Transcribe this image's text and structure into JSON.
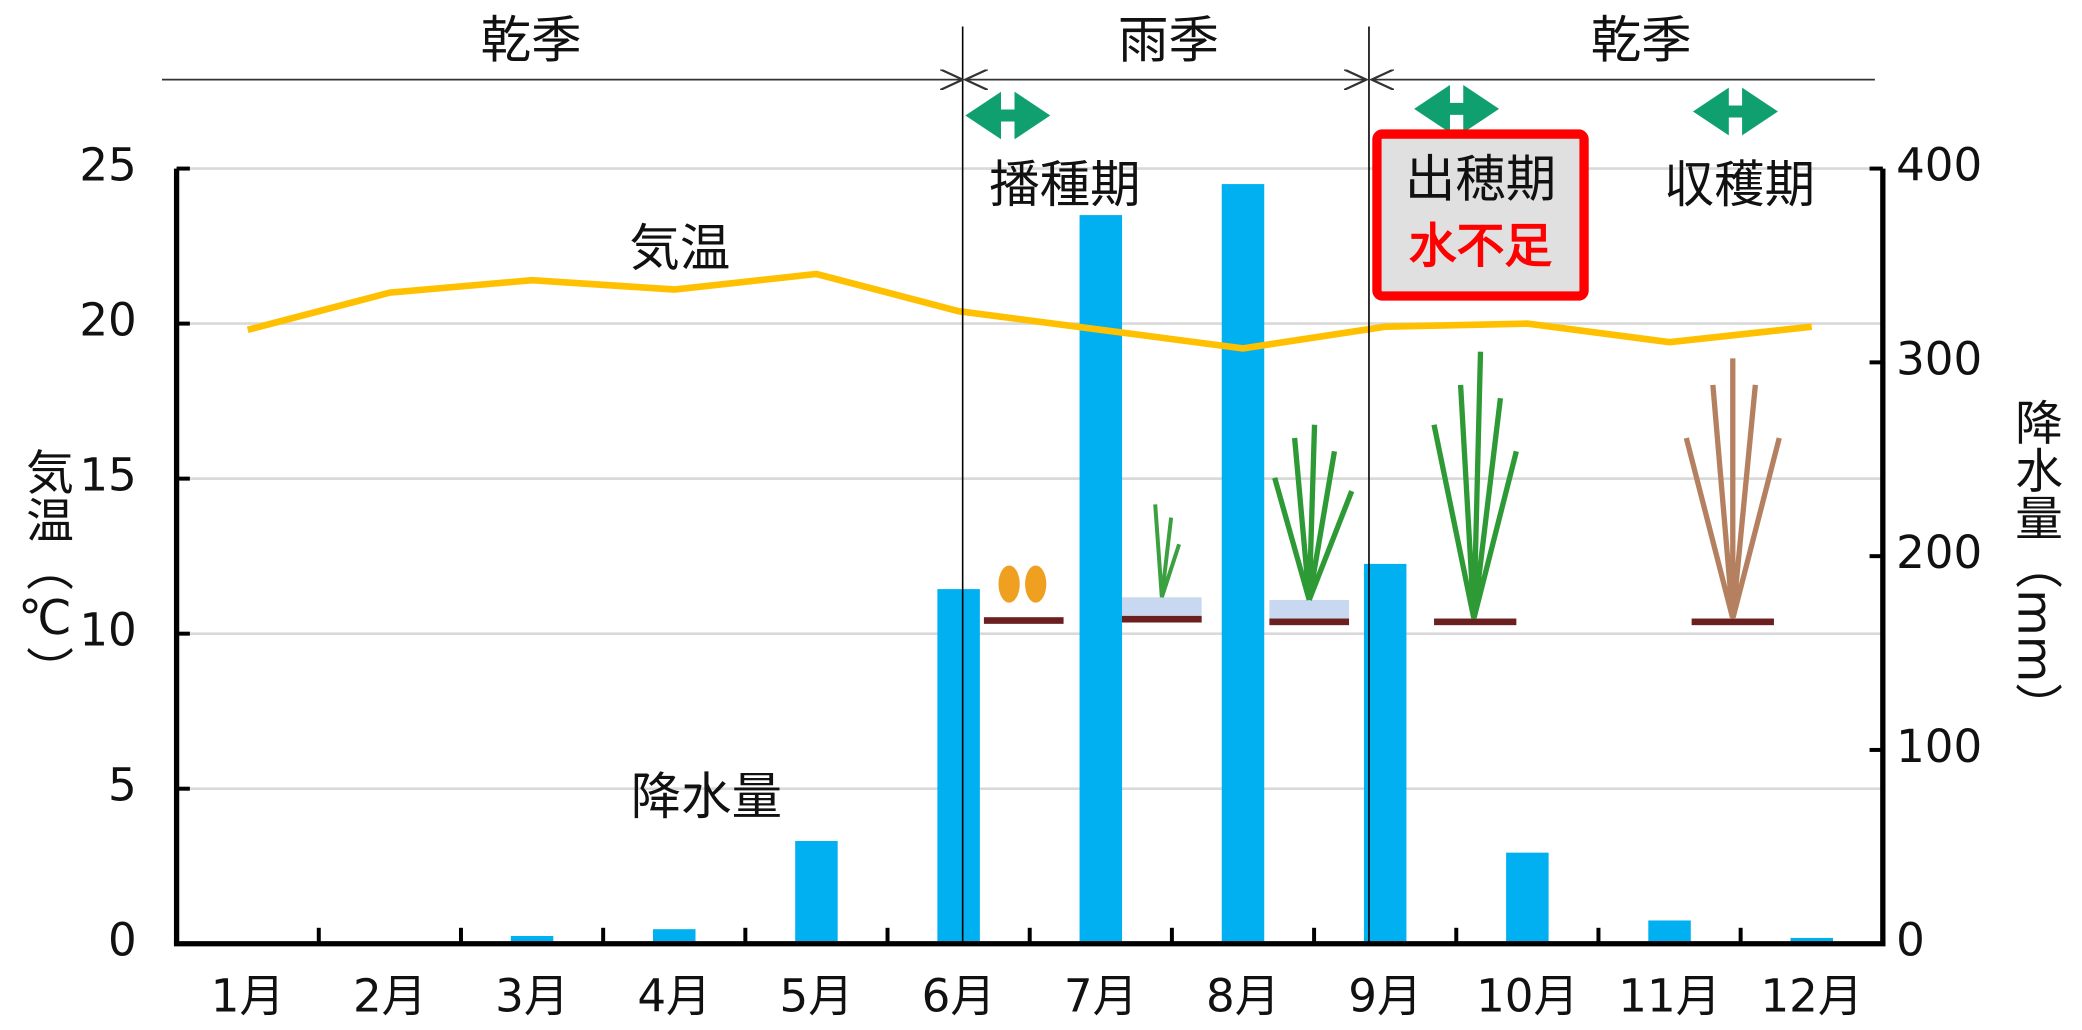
{
  "chart_data": {
    "type": "combo",
    "categories": [
      "1月",
      "2月",
      "3月",
      "4月",
      "5月",
      "6月",
      "7月",
      "8月",
      "9月",
      "10月",
      "11月",
      "12月"
    ],
    "series": [
      {
        "name": "降水量",
        "type": "bar",
        "axis": "y2",
        "color": "#00b0f0",
        "values": [
          0,
          0,
          4,
          7.5,
          53,
          183,
          376,
          392,
          196,
          47,
          12,
          3
        ]
      },
      {
        "name": "気温",
        "type": "line",
        "color": "#ffc000",
        "values": [
          19.8,
          21.0,
          21.4,
          21.1,
          21.6,
          20.4,
          19.8,
          19.2,
          19.9,
          20.0,
          19.4,
          19.9
        ]
      }
    ],
    "ylim": [
      0,
      25
    ],
    "yticks": [
      0,
      5,
      10,
      15,
      20,
      25
    ],
    "y2lim": [
      0,
      400
    ],
    "y2ticks": [
      0,
      100,
      200,
      300,
      400
    ],
    "y_label": "気温（℃）",
    "y2_label": "降水量（mm）",
    "grid": true,
    "seasons": [
      "乾季",
      "雨季",
      "乾季"
    ],
    "stages": [
      "播種期",
      "出穂期",
      "収穫期"
    ],
    "warning": "水不足"
  }
}
